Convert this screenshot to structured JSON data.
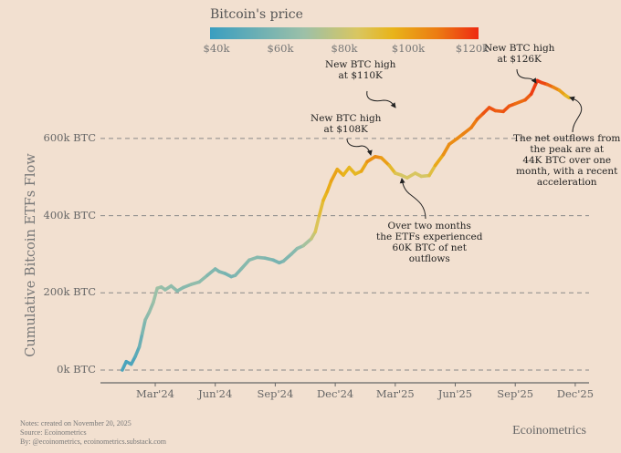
{
  "chart_data": {
    "type": "line",
    "title": "",
    "xlabel": "",
    "ylabel": "Cumulative Bitcoin ETFs Flow",
    "ylim": [
      0,
      780
    ],
    "y_unit": "k BTC",
    "y_ticks": [
      {
        "value": 0,
        "label": "0k BTC"
      },
      {
        "value": 200,
        "label": "200k BTC"
      },
      {
        "value": 400,
        "label": "400k BTC"
      },
      {
        "value": 600,
        "label": "600k BTC"
      }
    ],
    "x_unit": "months since Jan 2024",
    "xlim": [
      0,
      24
    ],
    "x_ticks": [
      {
        "value": 2,
        "label": "Mar'24"
      },
      {
        "value": 5,
        "label": "Jun'24"
      },
      {
        "value": 8,
        "label": "Sep'24"
      },
      {
        "value": 11,
        "label": "Dec'24"
      },
      {
        "value": 14,
        "label": "Mar'25"
      },
      {
        "value": 17,
        "label": "Jun'25"
      },
      {
        "value": 20,
        "label": "Sep'25"
      },
      {
        "value": 23,
        "label": "Dec'25"
      }
    ],
    "grid": "horizontal-dashed",
    "color_legend": {
      "title": "Bitcoin's price",
      "position": "top-center",
      "ticks": [
        "$40k",
        "$60k",
        "$80k",
        "$100k",
        "$120k"
      ],
      "range": [
        40,
        124
      ],
      "colors": [
        "#3a9ec0",
        "#9cc0a8",
        "#d9c660",
        "#e8b41a",
        "#ec7a12",
        "#ee2a12"
      ]
    },
    "series": [
      {
        "name": "Cumulative Bitcoin ETFs Flow",
        "x": [
          0.35,
          0.55,
          0.8,
          1.0,
          1.2,
          1.35,
          1.5,
          1.7,
          1.9,
          2.1,
          2.3,
          2.5,
          2.8,
          3.1,
          3.4,
          3.8,
          4.2,
          4.6,
          5.0,
          5.2,
          5.5,
          5.8,
          6.0,
          6.3,
          6.7,
          7.1,
          7.5,
          7.9,
          8.2,
          8.4,
          8.8,
          9.1,
          9.4,
          9.8,
          10.0,
          10.2,
          10.4,
          10.6,
          10.8,
          11.1,
          11.4,
          11.7,
          12.0,
          12.3,
          12.6,
          13.0,
          13.3,
          13.7,
          14.0,
          14.3,
          14.6,
          15.0,
          15.3,
          15.7,
          16.0,
          16.4,
          16.7,
          17.1,
          17.4,
          17.8,
          18.1,
          18.4,
          18.7,
          19.0,
          19.4,
          19.7,
          20.0,
          20.5,
          20.8,
          21.1,
          21.3,
          21.6,
          21.9,
          22.2,
          22.5,
          22.7
        ],
        "y": [
          0,
          22,
          15,
          35,
          60,
          95,
          130,
          150,
          175,
          212,
          215,
          208,
          218,
          205,
          214,
          222,
          228,
          245,
          262,
          255,
          250,
          242,
          245,
          262,
          285,
          292,
          290,
          285,
          278,
          282,
          300,
          315,
          322,
          340,
          358,
          400,
          440,
          462,
          490,
          520,
          505,
          525,
          508,
          515,
          540,
          553,
          550,
          530,
          510,
          505,
          498,
          510,
          502,
          504,
          530,
          558,
          585,
          600,
          612,
          628,
          650,
          665,
          680,
          672,
          670,
          684,
          690,
          700,
          715,
          750,
          745,
          740,
          733,
          725,
          712,
          705
        ],
        "price_k": [
          46,
          45,
          44,
          48,
          52,
          58,
          63,
          66,
          68,
          70,
          70,
          66,
          67,
          64,
          62,
          65,
          67,
          63,
          60,
          61,
          59,
          57,
          60,
          62,
          64,
          64,
          61,
          60,
          57,
          60,
          62,
          64,
          68,
          76,
          85,
          90,
          95,
          98,
          100,
          103,
          96,
          98,
          94,
          97,
          103,
          108,
          106,
          99,
          90,
          86,
          84,
          88,
          84,
          86,
          96,
          104,
          108,
          106,
          109,
          110,
          112,
          117,
          118,
          117,
          115,
          120,
          113,
          114,
          118,
          124,
          122,
          117,
          112,
          106,
          98,
          94
        ]
      }
    ],
    "annotations": [
      {
        "id": "high-110k",
        "lines": [
          "New BTC high",
          "at $110K"
        ]
      },
      {
        "id": "high-108k",
        "lines": [
          "New BTC high",
          "at $108K"
        ]
      },
      {
        "id": "outflows-two-months",
        "lines": [
          "Over two months",
          "the ETFs experienced",
          "60K BTC of net",
          "outflows"
        ]
      },
      {
        "id": "high-126k",
        "lines": [
          "New BTC high",
          "at $126K"
        ]
      },
      {
        "id": "outflows-peak",
        "lines": [
          "The net outflows from",
          "the peak are at",
          "44K BTC over one",
          "month, with a recent",
          "acceleration"
        ]
      }
    ]
  },
  "footer": {
    "notes": [
      "Notes: created on November 20, 2025",
      "Source: Ecoinometrics",
      "By: @ecoinometrics, ecoinometrics.substack.com"
    ],
    "brand": "Ecoinometrics"
  }
}
